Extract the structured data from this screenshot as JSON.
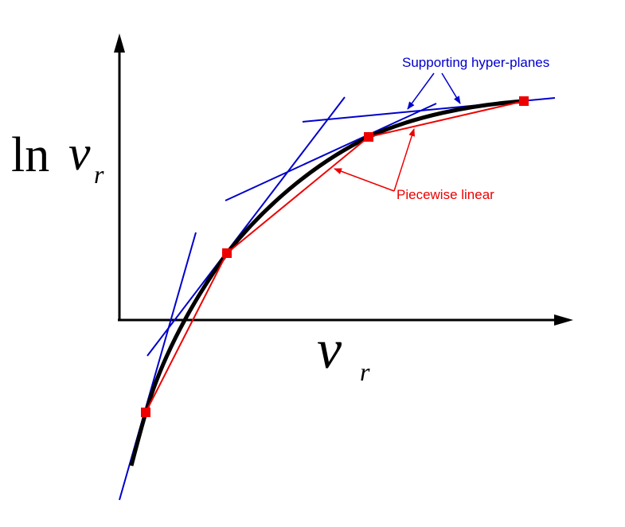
{
  "y_axis_label": {
    "prefix": "ln",
    "symbol": "ν",
    "subscript": "r"
  },
  "x_axis_label": {
    "symbol": "ν",
    "subscript": "r"
  },
  "annotations": {
    "supporting": "Supporting hyper-planes",
    "piecewise": "Piecewise linear"
  }
}
